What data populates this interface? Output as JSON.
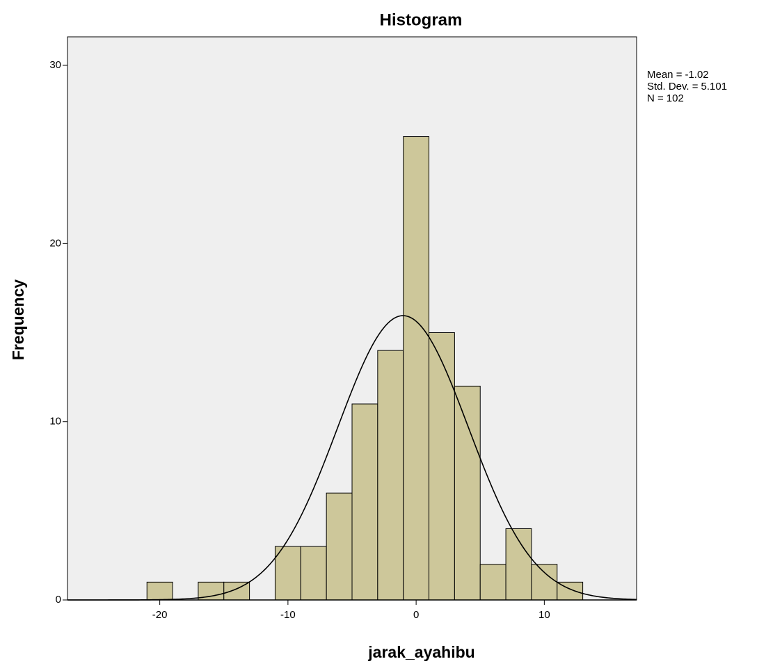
{
  "chart_data": {
    "type": "histogram",
    "title": "Histogram",
    "x_label": "jarak_ayahibu",
    "y_label": "Frequency",
    "bins": [
      -21,
      -19,
      -17,
      -15,
      -13,
      -11,
      -9,
      -7,
      -5,
      -3,
      -1,
      1,
      3,
      5,
      7,
      9,
      11,
      13
    ],
    "counts": [
      1,
      0,
      1,
      1,
      0,
      3,
      3,
      6,
      11,
      14,
      26,
      15,
      12,
      2,
      4,
      2,
      1
    ],
    "color": "#cdc79a",
    "curve_color": "#000000",
    "background": "#efefef",
    "xlim": [
      -27.2,
      17.2
    ],
    "xticks": [
      -20,
      -10,
      0,
      10
    ],
    "ylim": [
      0,
      31.6
    ],
    "yticks": [
      0,
      10,
      20,
      30
    ],
    "stats": [
      {
        "label": "Mean =",
        "value": -1.02
      },
      {
        "label": "Std. Dev. =",
        "value": 5.101
      },
      {
        "label": "N =",
        "value": 102
      }
    ]
  }
}
